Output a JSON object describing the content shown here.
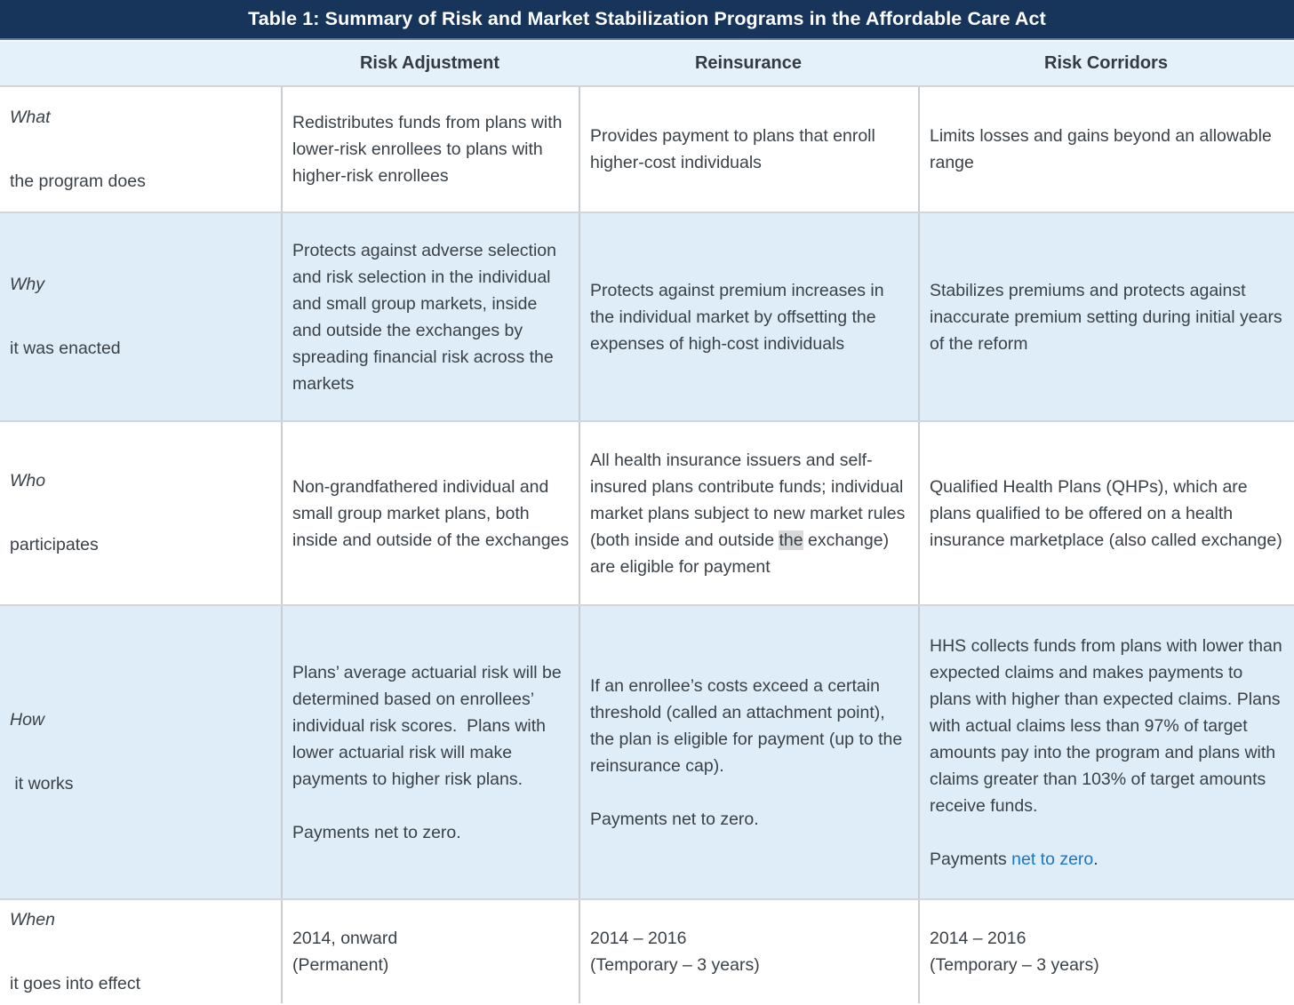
{
  "title": "Table 1: Summary of Risk and Market Stabilization Programs in the Affordable Care Act",
  "columns": [
    "Risk Adjustment",
    "Reinsurance",
    "Risk Corridors"
  ],
  "colors": {
    "title_bar_bg": "#17345a",
    "header_row_bg": "#e4f1fa",
    "alternate_row_bg": "#deedf8",
    "link_blue": "#1b76c4",
    "highlight_gray": "#d9d9d9"
  },
  "rows": {
    "what": {
      "keyword": "What",
      "sublabel": "the program does",
      "risk_adjustment": "Redistributes funds from plans with lower-risk enrollees to plans with higher-risk enrollees",
      "reinsurance": "Provides payment to plans that enroll higher-cost individuals",
      "risk_corridors": "Limits losses and gains beyond an allowable range"
    },
    "why": {
      "keyword": "Why",
      "sublabel": "it was enacted",
      "risk_adjustment": "Protects against adverse selection and risk selection in the individual and small group markets, inside and outside the exchanges by spreading financial risk across the markets",
      "reinsurance": "Protects against premium increases in the individual market by offsetting the expenses of high-cost individuals",
      "risk_corridors": "Stabilizes premiums and protects against inaccurate premium setting during initial years of the reform"
    },
    "who": {
      "keyword": "Who",
      "sublabel": "participates",
      "risk_adjustment": "Non-grandfathered individual and small group market plans, both inside and outside of the exchanges",
      "reinsurance_pre": "All health insurance issuers and self-insured plans contribute funds; individual market plans subject to new market rules (both inside and outside ",
      "reinsurance_highlight": "the",
      "reinsurance_post": " exchange) are eligible for payment",
      "risk_corridors": "Qualified Health Plans (QHPs), which are plans qualified to be offered on a health insurance marketplace (also called exchange)"
    },
    "how": {
      "keyword": "How",
      "sublabel": " it works",
      "risk_adjustment_para1": "Plans’ average actuarial risk will be determined based on enrollees’ individual risk scores.  Plans with lower actuarial risk will make payments to higher risk plans.",
      "risk_adjustment_para2": "Payments net to zero.",
      "reinsurance_para1": "If an enrollee’s costs exceed a certain threshold (called an attachment point), the plan is eligible for payment (up to the reinsurance cap).",
      "reinsurance_para2": "Payments net to zero.",
      "risk_corridors_para1": "HHS collects funds from plans with lower than expected claims and makes payments to plans with higher than expected claims. Plans with actual claims less than 97% of target amounts pay into the program and plans with claims greater than 103% of target amounts receive funds.",
      "risk_corridors_para2_pre": "Payments ",
      "risk_corridors_para2_link": "net to zero",
      "risk_corridors_para2_post": "."
    },
    "when": {
      "keyword": "When",
      "sublabel": "it goes into effect",
      "risk_adjustment_line1": "2014, onward",
      "risk_adjustment_line2": "(Permanent)",
      "reinsurance_line1": "2014 – 2016",
      "reinsurance_line2": "(Temporary – 3 years)",
      "risk_corridors_line1": "2014 – 2016",
      "risk_corridors_line2": "(Temporary – 3 years)"
    }
  }
}
